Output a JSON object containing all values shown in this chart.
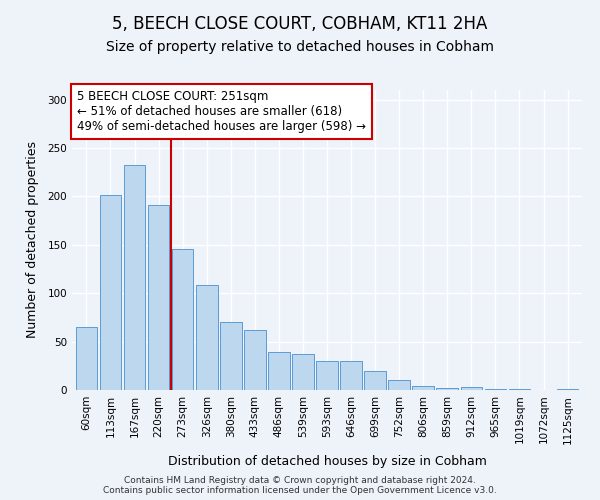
{
  "title": "5, BEECH CLOSE COURT, COBHAM, KT11 2HA",
  "subtitle": "Size of property relative to detached houses in Cobham",
  "xlabel": "Distribution of detached houses by size in Cobham",
  "ylabel": "Number of detached properties",
  "bar_labels": [
    "60sqm",
    "113sqm",
    "167sqm",
    "220sqm",
    "273sqm",
    "326sqm",
    "380sqm",
    "433sqm",
    "486sqm",
    "539sqm",
    "593sqm",
    "646sqm",
    "699sqm",
    "752sqm",
    "806sqm",
    "859sqm",
    "912sqm",
    "965sqm",
    "1019sqm",
    "1072sqm",
    "1125sqm"
  ],
  "bar_values": [
    65,
    201,
    233,
    191,
    146,
    108,
    70,
    62,
    39,
    37,
    30,
    30,
    20,
    10,
    4,
    2,
    3,
    1,
    1,
    0,
    1
  ],
  "bar_color": "#bdd7ee",
  "bar_edge_color": "#5b9bd5",
  "annotation_box_text": "5 BEECH CLOSE COURT: 251sqm\n← 51% of detached houses are smaller (618)\n49% of semi-detached houses are larger (598) →",
  "annotation_box_color": "white",
  "annotation_box_edge_color": "#cc0000",
  "vline_color": "#cc0000",
  "ylim": [
    0,
    310
  ],
  "yticks": [
    0,
    50,
    100,
    150,
    200,
    250,
    300
  ],
  "footer_line1": "Contains HM Land Registry data © Crown copyright and database right 2024.",
  "footer_line2": "Contains public sector information licensed under the Open Government Licence v3.0.",
  "background_color": "#eef2f9",
  "grid_color": "white",
  "title_fontsize": 12,
  "subtitle_fontsize": 10,
  "axis_label_fontsize": 9,
  "tick_fontsize": 7.5,
  "annotation_fontsize": 8.5,
  "footer_fontsize": 6.5
}
